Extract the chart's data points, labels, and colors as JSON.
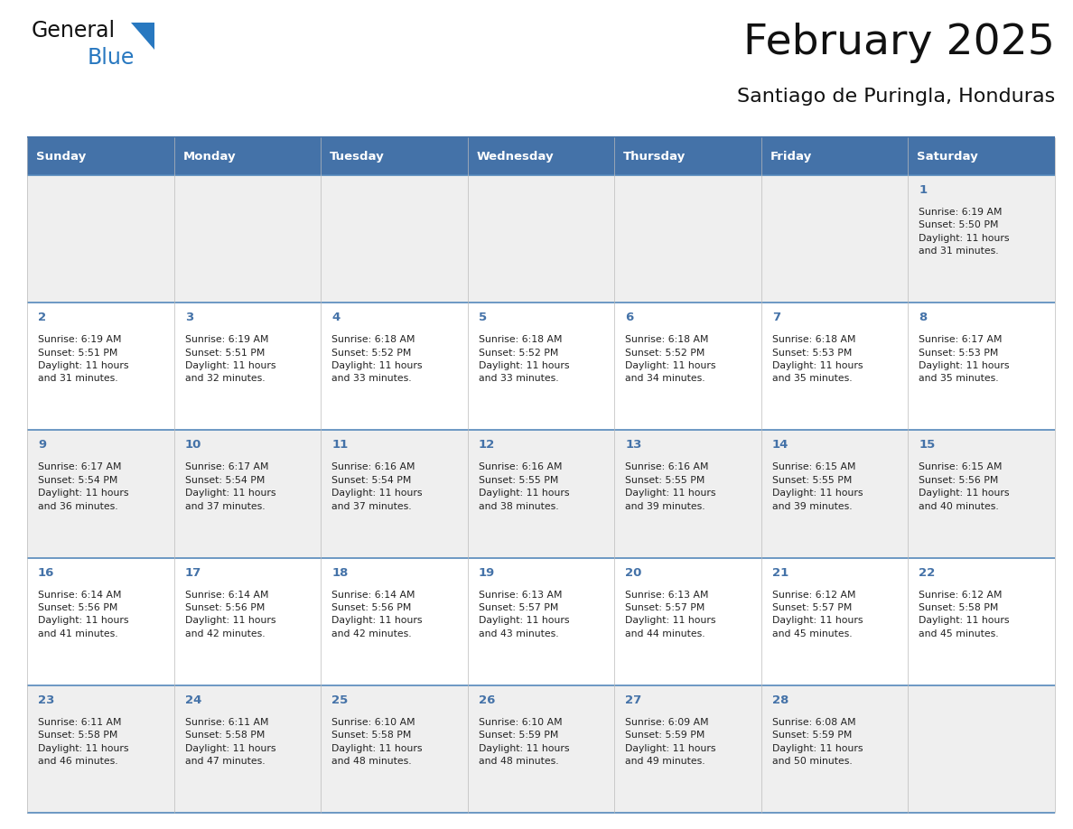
{
  "title": "February 2025",
  "subtitle": "Santiago de Puringla, Honduras",
  "days_of_week": [
    "Sunday",
    "Monday",
    "Tuesday",
    "Wednesday",
    "Thursday",
    "Friday",
    "Saturday"
  ],
  "header_bg": "#4472a8",
  "header_text_color": "#ffffff",
  "row_bg_colors": [
    "#efefef",
    "#ffffff",
    "#efefef",
    "#ffffff",
    "#efefef"
  ],
  "day_number_color": "#4472a8",
  "info_text_color": "#222222",
  "border_color": "#4472a8",
  "row_border_color": "#5588bb",
  "title_color": "#111111",
  "subtitle_color": "#111111",
  "logo_general_color": "#111111",
  "logo_blue_color": "#2878c0",
  "week_rows": [
    {
      "days": [
        {
          "date": "",
          "sunrise": "",
          "sunset": "",
          "daylight_line1": "",
          "daylight_line2": ""
        },
        {
          "date": "",
          "sunrise": "",
          "sunset": "",
          "daylight_line1": "",
          "daylight_line2": ""
        },
        {
          "date": "",
          "sunrise": "",
          "sunset": "",
          "daylight_line1": "",
          "daylight_line2": ""
        },
        {
          "date": "",
          "sunrise": "",
          "sunset": "",
          "daylight_line1": "",
          "daylight_line2": ""
        },
        {
          "date": "",
          "sunrise": "",
          "sunset": "",
          "daylight_line1": "",
          "daylight_line2": ""
        },
        {
          "date": "",
          "sunrise": "",
          "sunset": "",
          "daylight_line1": "",
          "daylight_line2": ""
        },
        {
          "date": "1",
          "sunrise": "6:19 AM",
          "sunset": "5:50 PM",
          "daylight_line1": "Daylight: 11 hours",
          "daylight_line2": "and 31 minutes."
        }
      ]
    },
    {
      "days": [
        {
          "date": "2",
          "sunrise": "6:19 AM",
          "sunset": "5:51 PM",
          "daylight_line1": "Daylight: 11 hours",
          "daylight_line2": "and 31 minutes."
        },
        {
          "date": "3",
          "sunrise": "6:19 AM",
          "sunset": "5:51 PM",
          "daylight_line1": "Daylight: 11 hours",
          "daylight_line2": "and 32 minutes."
        },
        {
          "date": "4",
          "sunrise": "6:18 AM",
          "sunset": "5:52 PM",
          "daylight_line1": "Daylight: 11 hours",
          "daylight_line2": "and 33 minutes."
        },
        {
          "date": "5",
          "sunrise": "6:18 AM",
          "sunset": "5:52 PM",
          "daylight_line1": "Daylight: 11 hours",
          "daylight_line2": "and 33 minutes."
        },
        {
          "date": "6",
          "sunrise": "6:18 AM",
          "sunset": "5:52 PM",
          "daylight_line1": "Daylight: 11 hours",
          "daylight_line2": "and 34 minutes."
        },
        {
          "date": "7",
          "sunrise": "6:18 AM",
          "sunset": "5:53 PM",
          "daylight_line1": "Daylight: 11 hours",
          "daylight_line2": "and 35 minutes."
        },
        {
          "date": "8",
          "sunrise": "6:17 AM",
          "sunset": "5:53 PM",
          "daylight_line1": "Daylight: 11 hours",
          "daylight_line2": "and 35 minutes."
        }
      ]
    },
    {
      "days": [
        {
          "date": "9",
          "sunrise": "6:17 AM",
          "sunset": "5:54 PM",
          "daylight_line1": "Daylight: 11 hours",
          "daylight_line2": "and 36 minutes."
        },
        {
          "date": "10",
          "sunrise": "6:17 AM",
          "sunset": "5:54 PM",
          "daylight_line1": "Daylight: 11 hours",
          "daylight_line2": "and 37 minutes."
        },
        {
          "date": "11",
          "sunrise": "6:16 AM",
          "sunset": "5:54 PM",
          "daylight_line1": "Daylight: 11 hours",
          "daylight_line2": "and 37 minutes."
        },
        {
          "date": "12",
          "sunrise": "6:16 AM",
          "sunset": "5:55 PM",
          "daylight_line1": "Daylight: 11 hours",
          "daylight_line2": "and 38 minutes."
        },
        {
          "date": "13",
          "sunrise": "6:16 AM",
          "sunset": "5:55 PM",
          "daylight_line1": "Daylight: 11 hours",
          "daylight_line2": "and 39 minutes."
        },
        {
          "date": "14",
          "sunrise": "6:15 AM",
          "sunset": "5:55 PM",
          "daylight_line1": "Daylight: 11 hours",
          "daylight_line2": "and 39 minutes."
        },
        {
          "date": "15",
          "sunrise": "6:15 AM",
          "sunset": "5:56 PM",
          "daylight_line1": "Daylight: 11 hours",
          "daylight_line2": "and 40 minutes."
        }
      ]
    },
    {
      "days": [
        {
          "date": "16",
          "sunrise": "6:14 AM",
          "sunset": "5:56 PM",
          "daylight_line1": "Daylight: 11 hours",
          "daylight_line2": "and 41 minutes."
        },
        {
          "date": "17",
          "sunrise": "6:14 AM",
          "sunset": "5:56 PM",
          "daylight_line1": "Daylight: 11 hours",
          "daylight_line2": "and 42 minutes."
        },
        {
          "date": "18",
          "sunrise": "6:14 AM",
          "sunset": "5:56 PM",
          "daylight_line1": "Daylight: 11 hours",
          "daylight_line2": "and 42 minutes."
        },
        {
          "date": "19",
          "sunrise": "6:13 AM",
          "sunset": "5:57 PM",
          "daylight_line1": "Daylight: 11 hours",
          "daylight_line2": "and 43 minutes."
        },
        {
          "date": "20",
          "sunrise": "6:13 AM",
          "sunset": "5:57 PM",
          "daylight_line1": "Daylight: 11 hours",
          "daylight_line2": "and 44 minutes."
        },
        {
          "date": "21",
          "sunrise": "6:12 AM",
          "sunset": "5:57 PM",
          "daylight_line1": "Daylight: 11 hours",
          "daylight_line2": "and 45 minutes."
        },
        {
          "date": "22",
          "sunrise": "6:12 AM",
          "sunset": "5:58 PM",
          "daylight_line1": "Daylight: 11 hours",
          "daylight_line2": "and 45 minutes."
        }
      ]
    },
    {
      "days": [
        {
          "date": "23",
          "sunrise": "6:11 AM",
          "sunset": "5:58 PM",
          "daylight_line1": "Daylight: 11 hours",
          "daylight_line2": "and 46 minutes."
        },
        {
          "date": "24",
          "sunrise": "6:11 AM",
          "sunset": "5:58 PM",
          "daylight_line1": "Daylight: 11 hours",
          "daylight_line2": "and 47 minutes."
        },
        {
          "date": "25",
          "sunrise": "6:10 AM",
          "sunset": "5:58 PM",
          "daylight_line1": "Daylight: 11 hours",
          "daylight_line2": "and 48 minutes."
        },
        {
          "date": "26",
          "sunrise": "6:10 AM",
          "sunset": "5:59 PM",
          "daylight_line1": "Daylight: 11 hours",
          "daylight_line2": "and 48 minutes."
        },
        {
          "date": "27",
          "sunrise": "6:09 AM",
          "sunset": "5:59 PM",
          "daylight_line1": "Daylight: 11 hours",
          "daylight_line2": "and 49 minutes."
        },
        {
          "date": "28",
          "sunrise": "6:08 AM",
          "sunset": "5:59 PM",
          "daylight_line1": "Daylight: 11 hours",
          "daylight_line2": "and 50 minutes."
        },
        {
          "date": "",
          "sunrise": "",
          "sunset": "",
          "daylight_line1": "",
          "daylight_line2": ""
        }
      ]
    }
  ]
}
